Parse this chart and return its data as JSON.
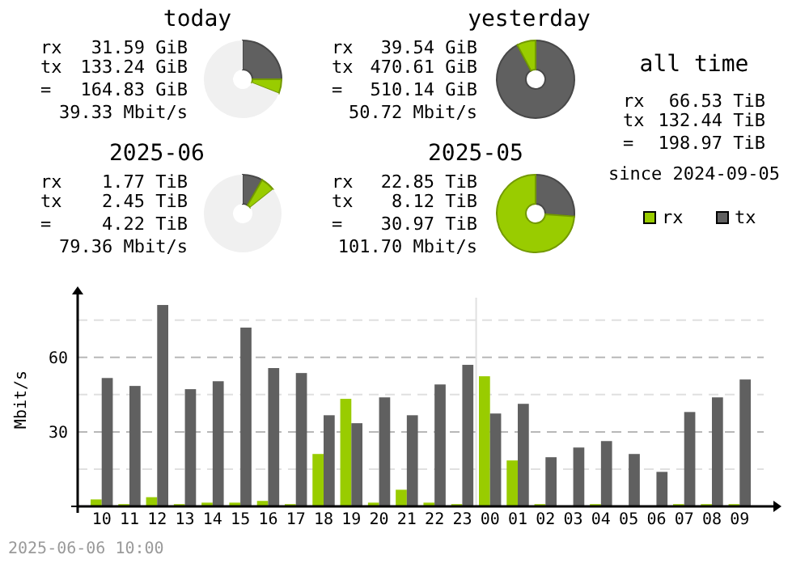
{
  "chart_data": [
    {
      "type": "donut",
      "title": "today",
      "categories": [
        null,
        null,
        null
      ],
      "values": [
        25,
        5.9,
        69.1
      ],
      "colors": [
        "#606060",
        "#99cc00",
        "#f0f0f0"
      ],
      "annotations": [
        "rx",
        "31.59 GiB",
        "tx",
        "133.24 GiB",
        "=",
        "164.83 GiB",
        "39.33 Mbit/s"
      ]
    },
    {
      "type": "donut",
      "title": "yesterday",
      "categories": [
        null,
        null
      ],
      "values": [
        92.2,
        7.8
      ],
      "colors": [
        "#606060",
        "#99cc00"
      ],
      "annotations": [
        "rx",
        "39.54 GiB",
        "tx",
        "470.61 GiB",
        "=",
        "510.14 GiB",
        "50.72 Mbit/s"
      ]
    },
    {
      "type": "other",
      "title": "all time",
      "annotations": [
        "rx",
        "66.53 TiB",
        "tx",
        "132.44 TiB",
        "=",
        "198.97 TiB",
        "since 2024-09-05"
      ]
    },
    {
      "type": "donut",
      "title": "2025-06",
      "categories": [
        null,
        null,
        null
      ],
      "values": [
        8.3,
        6,
        85.7
      ],
      "colors": [
        "#606060",
        "#99cc00",
        "#f0f0f0"
      ],
      "annotations": [
        "rx",
        "1.77 TiB",
        "tx",
        "2.45 TiB",
        "=",
        "4.22 TiB",
        "79.36 Mbit/s"
      ]
    },
    {
      "type": "donut",
      "title": "2025-05",
      "categories": [
        null,
        null
      ],
      "values": [
        26.2,
        73.8
      ],
      "colors": [
        "#606060",
        "#99cc00"
      ],
      "annotations": [
        "rx",
        "22.85 TiB",
        "tx",
        "8.12 TiB",
        "=",
        "30.97 TiB",
        "101.70 Mbit/s"
      ]
    },
    {
      "type": "bar",
      "ylabel": "Mbit/s",
      "categories": [
        "10",
        "11",
        "12",
        "13",
        "14",
        "15",
        "16",
        "17",
        "18",
        "19",
        "20",
        "21",
        "22",
        "23",
        "00",
        "01",
        "02",
        "03",
        "04",
        "05",
        "06",
        "07",
        "08",
        "09"
      ],
      "series": [
        {
          "name": "rx",
          "color": "#99cc00",
          "values": [
            2.8,
            0.9,
            3.7,
            0.9,
            1.5,
            1.5,
            2.2,
            0.9,
            21.1,
            43.3,
            1.5,
            6.7,
            1.5,
            0.9,
            52.4,
            18.5,
            0.9,
            0,
            0.9,
            0,
            0,
            0.9,
            0.9,
            0.9
          ]
        },
        {
          "name": "tx",
          "color": "#606060",
          "values": [
            51.7,
            48.5,
            81.1,
            47.2,
            50.4,
            72,
            55.7,
            53.7,
            36.7,
            33.5,
            43.9,
            36.7,
            49.1,
            57,
            37.4,
            41.3,
            19.8,
            23.7,
            26.3,
            21.1,
            13.9,
            38,
            43.9,
            51.1
          ]
        }
      ],
      "ylim": [
        0,
        86
      ],
      "yticks": [
        {
          "value": 15,
          "label": null
        },
        30,
        {
          "value": 45,
          "label": null
        },
        60,
        {
          "value": 75,
          "label": null
        }
      ],
      "grid": "y",
      "legend": "top right",
      "ref_lines": [
        {
          "axis": "x",
          "value": "00",
          "color": "#e0e0e0"
        }
      ],
      "annotations": [
        "2025-06-06 10:00"
      ]
    }
  ]
}
